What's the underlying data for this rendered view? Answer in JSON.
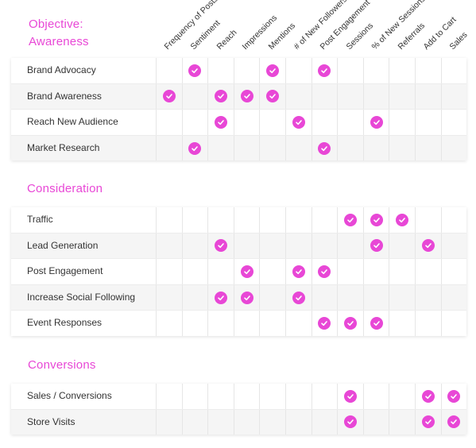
{
  "columns": [
    "Frequency of Posts",
    "Sentiment",
    "Reach",
    "Impressions",
    "Mentions",
    "# of New Followers",
    "Post Engagement",
    "Sessions",
    "% of New Sessions",
    "Referrals",
    "Add to Cart",
    "Sales"
  ],
  "accent_color": "#e847d6",
  "check_icon": "check-circle-icon",
  "sections": [
    {
      "title_line1": "Objective:",
      "title_line2": "Awareness",
      "rows": [
        {
          "label": "Brand Advocacy",
          "checks": [
            1,
            4,
            6
          ]
        },
        {
          "label": "Brand Awareness",
          "checks": [
            0,
            2,
            3,
            4
          ]
        },
        {
          "label": "Reach New Audience",
          "checks": [
            2,
            5,
            8
          ]
        },
        {
          "label": "Market Research",
          "checks": [
            1,
            6
          ]
        }
      ]
    },
    {
      "title_line1": "Consideration",
      "title_line2": "",
      "rows": [
        {
          "label": "Traffic",
          "checks": [
            7,
            8,
            9
          ]
        },
        {
          "label": "Lead Generation",
          "checks": [
            2,
            8,
            10
          ]
        },
        {
          "label": "Post Engagement",
          "checks": [
            3,
            5,
            6
          ]
        },
        {
          "label": "Increase Social Following",
          "checks": [
            2,
            3,
            5
          ]
        },
        {
          "label": "Event Responses",
          "checks": [
            6,
            7,
            8
          ]
        }
      ]
    },
    {
      "title_line1": "Conversions",
      "title_line2": "",
      "rows": [
        {
          "label": "Sales / Conversions",
          "checks": [
            7,
            10,
            11
          ]
        },
        {
          "label": "Store Visits",
          "checks": [
            7,
            10,
            11
          ]
        }
      ]
    }
  ]
}
